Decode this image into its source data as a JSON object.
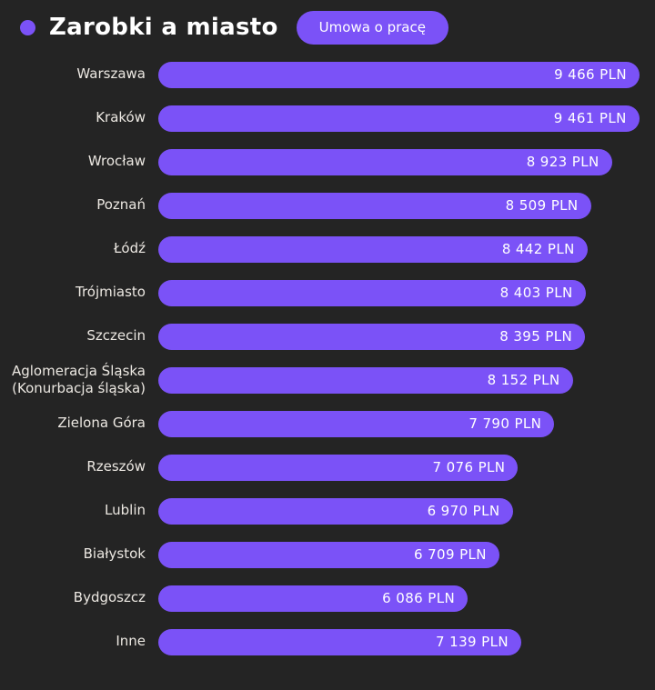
{
  "header": {
    "title": "Zarobki a miasto",
    "badge_label": "Umowa o pracę"
  },
  "colors": {
    "background": "#242424",
    "bar": "#7b52f7",
    "badge": "#7b52f7",
    "title_text": "#ffffff",
    "label_text": "#ece8e2",
    "value_text": "#ffffff"
  },
  "chart_data": {
    "type": "bar",
    "orientation": "horizontal",
    "title": "Zarobki a miasto",
    "filter_badge": "Umowa o pracę",
    "unit": "PLN",
    "grid": false,
    "legend": "none",
    "xlim": [
      0,
      9466
    ],
    "categories": [
      "Warszawa",
      "Kraków",
      "Wrocław",
      "Poznań",
      "Łódź",
      "Trójmiasto",
      "Szczecin",
      "Aglomeracja Śląska (Konurbacja śląska)",
      "Zielona Góra",
      "Rzeszów",
      "Lublin",
      "Białystok",
      "Bydgoszcz",
      "Inne"
    ],
    "values": [
      9466,
      9461,
      8923,
      8509,
      8442,
      8403,
      8395,
      8152,
      7790,
      7076,
      6970,
      6709,
      6086,
      7139
    ],
    "value_labels": [
      "9 466 PLN",
      "9 461 PLN",
      "8 923 PLN",
      "8 509 PLN",
      "8 442 PLN",
      "8 403 PLN",
      "8 395 PLN",
      "8 152 PLN",
      "7 790 PLN",
      "7 076 PLN",
      "6 970 PLN",
      "6 709 PLN",
      "6 086 PLN",
      "7 139 PLN"
    ]
  }
}
